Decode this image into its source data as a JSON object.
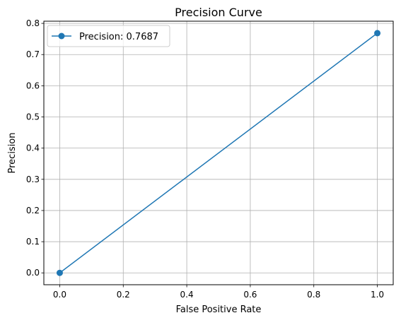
{
  "chart_data": {
    "type": "line",
    "title": "Precision Curve",
    "xlabel": "False Positive Rate",
    "ylabel": "Precision",
    "xlim": [
      -0.05,
      1.05
    ],
    "ylim": [
      -0.038,
      0.807
    ],
    "xticks": [
      0.0,
      0.2,
      0.4,
      0.6,
      0.8,
      1.0
    ],
    "xtick_labels": [
      "0.0",
      "0.2",
      "0.4",
      "0.6",
      "0.8",
      "1.0"
    ],
    "yticks": [
      0.0,
      0.1,
      0.2,
      0.3,
      0.4,
      0.5,
      0.6,
      0.7,
      0.8
    ],
    "ytick_labels": [
      "0.0",
      "0.1",
      "0.2",
      "0.3",
      "0.4",
      "0.5",
      "0.6",
      "0.7",
      "0.8"
    ],
    "grid": true,
    "legend_position": "top-left",
    "series": [
      {
        "name": "Precision: 0.7687",
        "color": "#1f77b4",
        "marker": "circle",
        "x": [
          0.0,
          1.0
        ],
        "y": [
          0.0,
          0.7687
        ]
      }
    ]
  }
}
